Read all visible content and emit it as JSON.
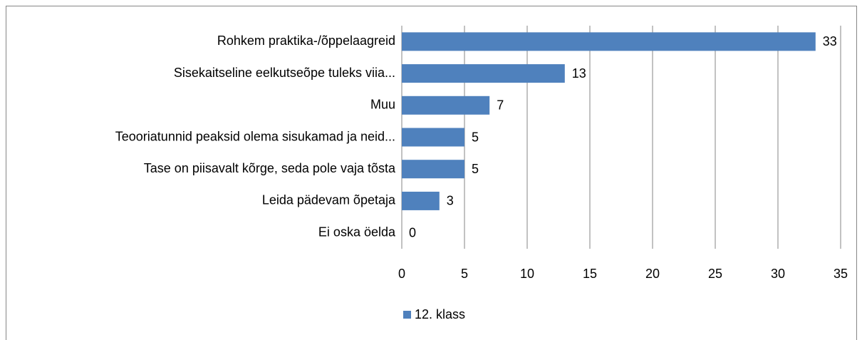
{
  "chart_data": {
    "type": "bar",
    "orientation": "horizontal",
    "categories": [
      "Rohkem praktika-/õppelaagreid",
      "Sisekaitseline eelkutseõpe tuleks viia...",
      "Muu",
      "Teooriatunnid peaksid olema sisukamad ja neid...",
      "Tase on piisavalt kõrge, seda pole vaja tõsta",
      "Leida pädevam õpetaja",
      "Ei oska öelda"
    ],
    "series": [
      {
        "name": "12. klass",
        "color": "#4f81bd",
        "values": [
          33,
          13,
          7,
          5,
          5,
          3,
          0
        ]
      }
    ],
    "xlim": [
      0,
      35
    ],
    "xticks": [
      0,
      5,
      10,
      15,
      20,
      25,
      30,
      35
    ],
    "grid": true,
    "legend": "bottom"
  }
}
